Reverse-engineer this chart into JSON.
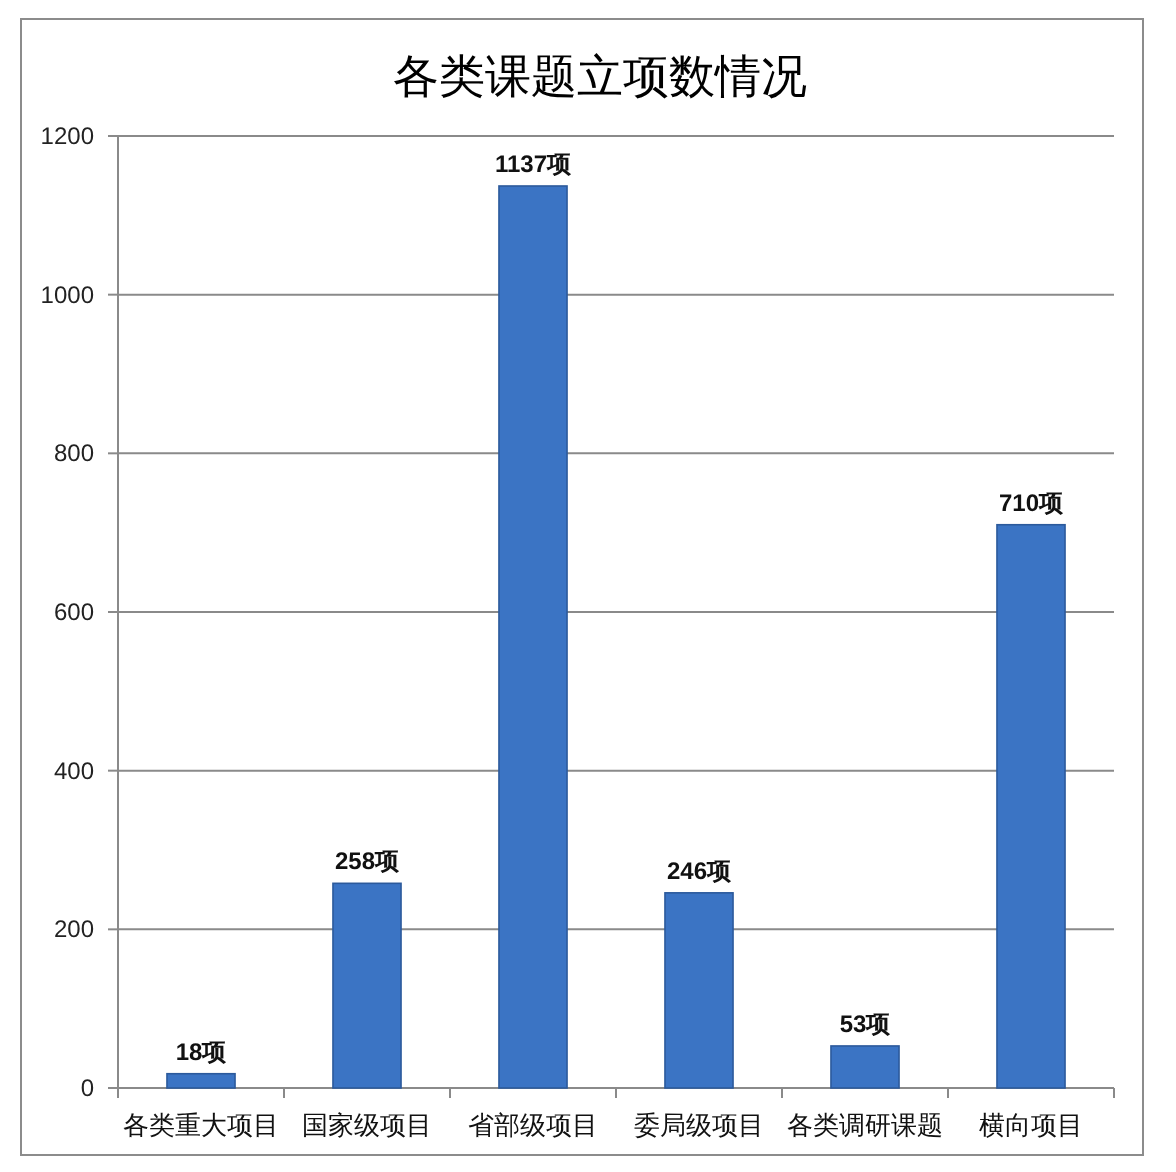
{
  "chart_data": {
    "type": "bar",
    "title": "各类课题立项数情况",
    "categories": [
      "各类重大项目",
      "国家级项目",
      "省部级项目",
      "委局级项目",
      "各类调研课题",
      "横向项目"
    ],
    "values": [
      18,
      258,
      1137,
      246,
      53,
      710
    ],
    "value_labels": [
      "18项",
      "258项",
      "1137项",
      "246项",
      "53项",
      "710项"
    ],
    "color": "#3b74c4",
    "ylim": [
      0,
      1200
    ],
    "yticks": [
      0,
      200,
      400,
      600,
      800,
      1000,
      1200
    ],
    "grid": "y"
  }
}
